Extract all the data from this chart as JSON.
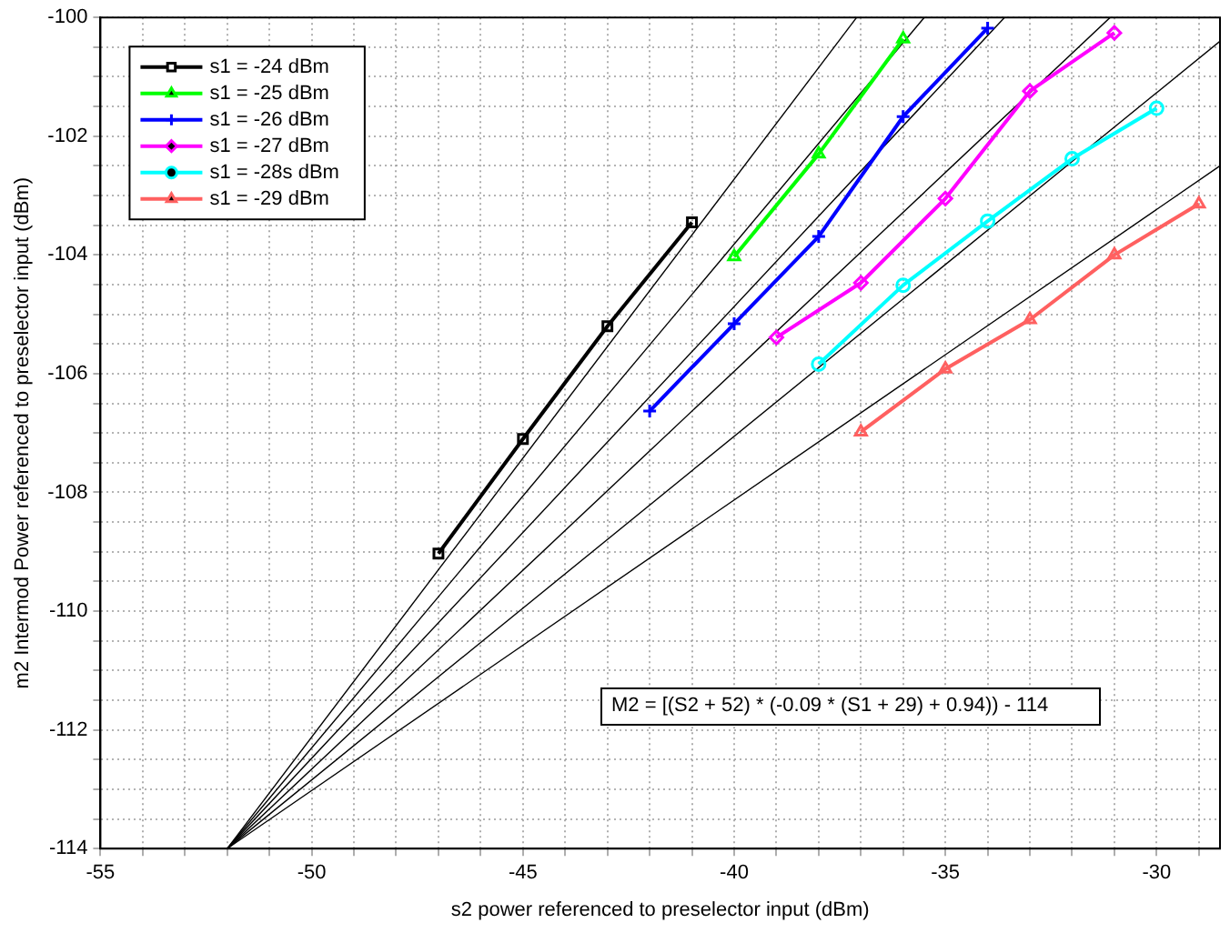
{
  "chart_data": {
    "type": "line",
    "xlabel": "s2 power referenced to preselector input (dBm)",
    "ylabel": "m2 Intermod Power referenced to preselector input (dBm)",
    "annotations": [
      "M2 = [(S2 + 52) * (-0.09 * (S1 + 29) + 0.94)) - 114"
    ],
    "xlim": [
      -55,
      -28.5
    ],
    "ylim": [
      -114,
      -100
    ],
    "xticks": [
      -55,
      {
        "value": -54,
        "label": null
      },
      {
        "value": -53,
        "label": null
      },
      {
        "value": -52,
        "label": null
      },
      {
        "value": -51,
        "label": null
      },
      -50,
      {
        "value": -49,
        "label": null
      },
      {
        "value": -48,
        "label": null
      },
      {
        "value": -47,
        "label": null
      },
      {
        "value": -46,
        "label": null
      },
      -45,
      {
        "value": -44,
        "label": null
      },
      {
        "value": -43,
        "label": null
      },
      {
        "value": -42,
        "label": null
      },
      {
        "value": -41,
        "label": null
      },
      -40,
      {
        "value": -39,
        "label": null
      },
      {
        "value": -38,
        "label": null
      },
      {
        "value": -37,
        "label": null
      },
      {
        "value": -36,
        "label": null
      },
      -35,
      {
        "value": -34,
        "label": null
      },
      {
        "value": -33,
        "label": null
      },
      {
        "value": -32,
        "label": null
      },
      {
        "value": -31,
        "label": null
      },
      -30,
      {
        "value": -29,
        "label": null
      }
    ],
    "yticks": [
      -114,
      {
        "value": -113.5,
        "label": null
      },
      {
        "value": -113,
        "label": null
      },
      {
        "value": -112.5,
        "label": null
      },
      -112,
      {
        "value": -111.5,
        "label": null
      },
      {
        "value": -111,
        "label": null
      },
      {
        "value": -110.5,
        "label": null
      },
      -110,
      {
        "value": -109.5,
        "label": null
      },
      {
        "value": -109,
        "label": null
      },
      {
        "value": -108.5,
        "label": null
      },
      -108,
      {
        "value": -107.5,
        "label": null
      },
      {
        "value": -107,
        "label": null
      },
      {
        "value": -106.5,
        "label": null
      },
      -106,
      {
        "value": -105.5,
        "label": null
      },
      {
        "value": -105,
        "label": null
      },
      {
        "value": -104.5,
        "label": null
      },
      -104,
      {
        "value": -103.5,
        "label": null
      },
      {
        "value": -103,
        "label": null
      },
      {
        "value": -102.5,
        "label": null
      },
      -102,
      {
        "value": -101.5,
        "label": null
      },
      {
        "value": -101,
        "label": null
      },
      {
        "value": -100.5,
        "label": null
      },
      -100
    ],
    "grid": true,
    "legend": "top left",
    "line_style": "solid",
    "series": [
      {
        "name": "s1 = -24 dBm",
        "color": "#000000",
        "marker": "square",
        "x": [
          -47,
          -45,
          -43,
          -41
        ],
        "values": [
          -109.03,
          -107.1,
          -105.2,
          -103.45
        ]
      },
      {
        "name": "s1 = -25 dBm",
        "color": "#00ff00",
        "marker": "triangle",
        "x": [
          -40,
          -38,
          -36
        ],
        "values": [
          -104.03,
          -102.3,
          -100.36
        ]
      },
      {
        "name": "s1 = -26 dBm",
        "color": "#0000ff",
        "marker": "cross",
        "x": [
          -42,
          -40,
          -38,
          -36,
          -34
        ],
        "values": [
          -106.63,
          -105.16,
          -103.69,
          -101.67,
          -100.18
        ]
      },
      {
        "name": "s1 = -27 dBm",
        "color": "#ff00ff",
        "marker": "diamond",
        "x": [
          -39,
          -37,
          -35,
          -33,
          -31
        ],
        "values": [
          -105.39,
          -104.47,
          -103.05,
          -101.24,
          -100.26
        ]
      },
      {
        "name": "s1 = -28s dBm",
        "color": "#00ffff",
        "marker": "circle",
        "x": [
          -38,
          -36,
          -34,
          -32,
          -30
        ],
        "values": [
          -105.84,
          -104.51,
          -103.43,
          -102.38,
          -101.53
        ]
      },
      {
        "name": "s1 = -29 dBm",
        "color": "#ff6060",
        "marker": "triangle",
        "x": [
          -37,
          -35,
          -33,
          -31,
          -29
        ],
        "values": [
          -106.98,
          -105.92,
          -105.09,
          -104,
          -103.14
        ]
      },
      {
        "color": "#000000",
        "marker": "none",
        "x": [
          -52,
          -37.1
        ],
        "values": [
          -114,
          -100
        ]
      },
      {
        "color": "#000000",
        "marker": "none",
        "x": [
          -52,
          -35.5
        ],
        "values": [
          -114,
          -100
        ]
      },
      {
        "color": "#000000",
        "marker": "none",
        "x": [
          -52,
          -33.6
        ],
        "values": [
          -114,
          -100
        ]
      },
      {
        "color": "#000000",
        "marker": "none",
        "x": [
          -52,
          -31.1
        ],
        "values": [
          -114,
          -100
        ]
      },
      {
        "color": "#000000",
        "marker": "none",
        "x": [
          -52,
          -28.5
        ],
        "values": [
          -114,
          -100.4
        ]
      },
      {
        "color": "#000000",
        "marker": "none",
        "x": [
          -52,
          -28.5
        ],
        "values": [
          -114,
          -102.5
        ]
      }
    ]
  }
}
